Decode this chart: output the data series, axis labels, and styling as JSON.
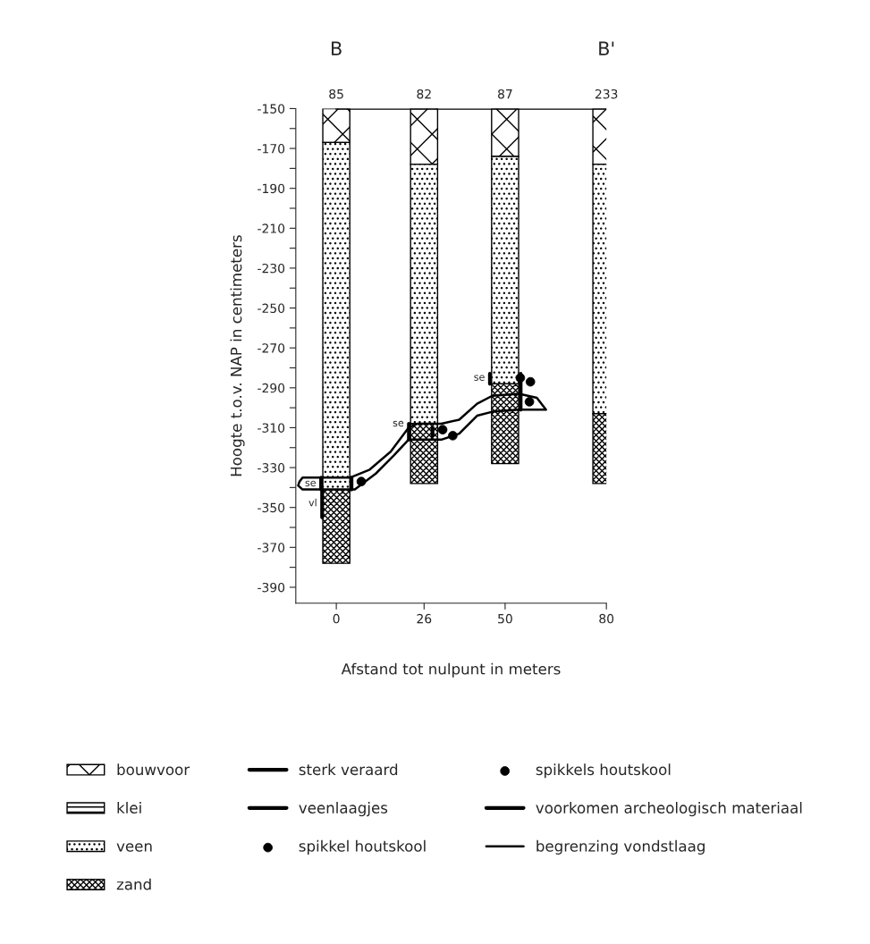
{
  "chart_data": {
    "type": "bar",
    "xlabel": "Afstand tot nulpunt in meters",
    "ylabel": "Hoogte t.o.v. NAP in centimeters",
    "x": [
      0,
      26,
      50,
      80
    ],
    "xlim": [
      -12,
      80
    ],
    "xticks": [
      0,
      26,
      50,
      80
    ],
    "ylim": [
      -398,
      -150
    ],
    "yticks": [
      -150,
      {
        "value": -160,
        "label": null
      },
      -170,
      {
        "value": -180,
        "label": null
      },
      -190,
      {
        "value": -200,
        "label": null
      },
      -210,
      {
        "value": -220,
        "label": null
      },
      -230,
      {
        "value": -240,
        "label": null
      },
      -250,
      {
        "value": -260,
        "label": null
      },
      -270,
      {
        "value": -280,
        "label": null
      },
      -290,
      {
        "value": -300,
        "label": null
      },
      -310,
      {
        "value": -320,
        "label": null
      },
      -330,
      {
        "value": -340,
        "label": null
      },
      -350,
      {
        "value": -360,
        "label": null
      },
      -370,
      {
        "value": -380,
        "label": null
      },
      -390
    ],
    "grid": false,
    "legend": "bottom",
    "series": [
      {
        "name": "bouwvoor",
        "color": "#000000",
        "base": [
          -150,
          -150,
          -150,
          -150
        ],
        "values": [
          -17,
          -28,
          -24,
          -28
        ]
      },
      {
        "name": "klei",
        "color": "#000000",
        "values": [
          null,
          null,
          null,
          null
        ]
      },
      {
        "name": "veen",
        "color": "#000000",
        "base": [
          -167,
          -178,
          -174,
          -178
        ],
        "values": [
          -174,
          -130,
          -114,
          -125
        ]
      },
      {
        "name": "zand",
        "color": "#000000",
        "base": [
          -341,
          -308,
          -288,
          -303
        ],
        "values": [
          -37,
          -30,
          -40,
          -35
        ]
      },
      {
        "type": "line",
        "color": "#000000",
        "x": [
          0,
          80
        ],
        "values": [
          -150,
          -150
        ]
      },
      {
        "name": "sterk veraard",
        "type": "line",
        "color": "#000000",
        "x": [
          -4.5,
          -4.5,
          null,
          21.5,
          21.5,
          null,
          45.5,
          45.5
        ],
        "values": [
          -335,
          -341,
          null,
          -308,
          -316,
          null,
          -283,
          -288
        ]
      },
      {
        "name": "veenlaagjes",
        "type": "line",
        "color": "#000000",
        "x": [
          -4.2,
          -4.2
        ],
        "values": [
          -342,
          -355
        ]
      },
      {
        "name": "spikkel houtskool",
        "type": "scatter",
        "marker": "circle",
        "color": "#000000",
        "x": [
          7.4,
          57.2
        ],
        "values": [
          -337,
          -297
        ]
      },
      {
        "name": "spikkels houtskool",
        "type": "scatter",
        "marker": "circle",
        "color": "#000000",
        "x": [
          31.5,
          34.5,
          54.5,
          57.5
        ],
        "values": [
          -311,
          -314,
          -285,
          -287
        ]
      },
      {
        "name": "voorkomen archeologisch materiaal",
        "type": "line",
        "color": "#000000",
        "x": [
          4.5,
          4.5,
          null,
          28.5,
          28.5,
          null,
          54.6,
          54.6
        ],
        "values": [
          -335,
          -341,
          null,
          -310,
          -314,
          null,
          -283,
          -301
        ]
      },
      {
        "name": "begrenzing vondstlaag",
        "type": "line",
        "color": "#000000",
        "x": [
          -10.9,
          -10.0,
          4.2,
          9.9,
          16.1,
          21.4,
          24.1,
          31.1,
          36.4,
          41.7,
          46.2,
          54.1,
          59.4,
          62.1,
          null,
          -10.9,
          -11.3,
          -10.0,
          5.5,
          11.7,
          17.0,
          21.4,
          31.1,
          36.4,
          41.7,
          46.2,
          54.1,
          61.2,
          62.1
        ],
        "values": [
          -337,
          -335,
          -335,
          -331,
          -322,
          -310,
          -308,
          -308,
          -306,
          -298,
          -294,
          -293,
          -295,
          -301,
          null,
          -337,
          -339,
          -341,
          -341,
          -333,
          -324,
          -316,
          -316,
          -313,
          -304,
          -302,
          -301,
          -301,
          -301
        ]
      }
    ],
    "annotations": [
      "B",
      "B'",
      {
        "text": "85",
        "x": 0,
        "y": -150
      },
      {
        "text": "82",
        "x": 26,
        "y": -150
      },
      {
        "text": "87",
        "x": 50,
        "y": -150
      },
      {
        "text": "233",
        "x": 80,
        "y": -150
      },
      {
        "text": "se",
        "x": -4.5,
        "y": -338
      },
      {
        "text": "se",
        "x": 21.5,
        "y": -308
      },
      {
        "text": "se",
        "x": 45.5,
        "y": -285
      },
      {
        "text": "vl",
        "x": -4.2,
        "y": -348
      }
    ]
  }
}
